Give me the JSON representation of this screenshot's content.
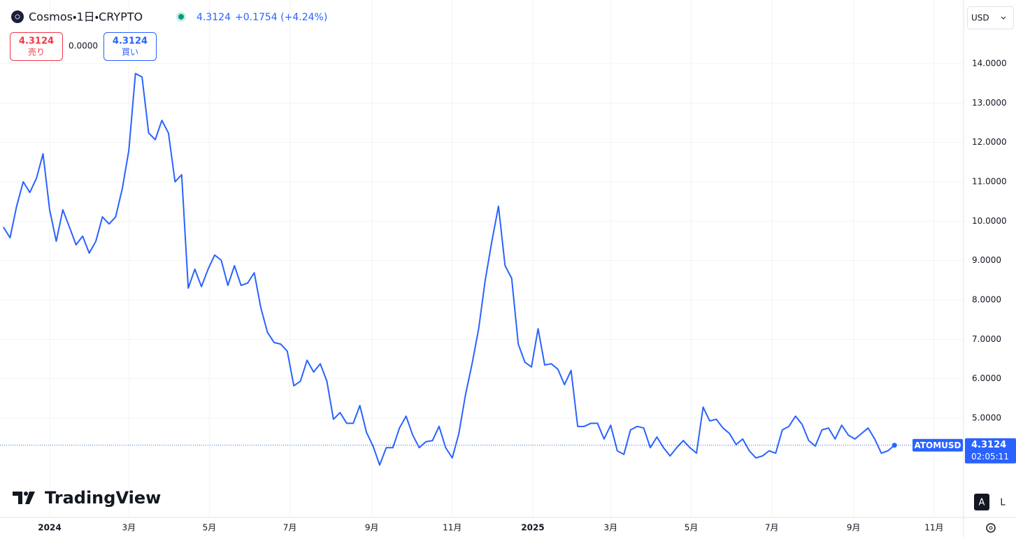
{
  "header": {
    "title": "Cosmos・1日・CRYPTO",
    "price": "4.3124",
    "change": "+0.1754 (+4.24%)"
  },
  "trade": {
    "sell_price": "4.3124",
    "sell_label": "売り",
    "spread": "0.0000",
    "buy_price": "4.3124",
    "buy_label": "買い"
  },
  "currency": "USD",
  "watermark": "TradingView",
  "scale_buttons": [
    "A",
    "L"
  ],
  "chart_data": {
    "type": "line",
    "series": [
      {
        "name": "ATOMUSD",
        "color": "#2962ff",
        "x": [
          -35,
          -30,
          -25,
          -20,
          -15,
          -10,
          -5,
          0,
          5,
          10,
          15,
          20,
          25,
          30,
          35,
          40,
          45,
          50,
          55,
          60,
          65,
          70,
          75,
          80,
          85,
          90,
          95,
          100,
          105,
          110,
          115,
          120,
          125,
          130,
          135,
          140,
          145,
          150,
          155,
          160,
          165,
          170,
          175,
          180,
          185,
          190,
          195,
          200,
          205,
          210,
          215,
          220,
          225,
          230,
          235,
          240,
          245,
          250,
          255,
          260,
          265,
          270,
          275,
          280,
          285,
          290,
          295,
          300,
          305,
          310,
          315,
          320,
          325,
          330,
          335,
          340,
          345,
          350,
          355,
          360,
          365,
          370,
          375,
          380,
          385,
          390,
          395,
          400,
          405,
          410,
          415,
          420,
          425,
          430,
          435,
          440,
          445,
          450,
          455,
          460,
          465,
          470,
          475,
          480,
          485,
          490,
          495,
          500,
          505,
          510,
          515,
          520,
          525,
          530,
          535,
          540,
          545,
          550,
          555,
          560,
          565,
          570,
          575,
          580,
          585,
          590,
          595,
          600,
          605,
          610,
          615,
          620,
          625,
          630,
          635,
          640
        ],
        "values": [
          9.85,
          9.58,
          10.38,
          11.0,
          10.73,
          11.09,
          11.71,
          10.29,
          9.49,
          10.29,
          9.85,
          9.4,
          9.62,
          9.19,
          9.49,
          10.11,
          9.93,
          10.11,
          10.82,
          11.8,
          13.75,
          13.66,
          12.24,
          12.07,
          12.56,
          12.24,
          11.0,
          11.18,
          8.3,
          8.78,
          8.34,
          8.78,
          9.14,
          9.01,
          8.37,
          8.87,
          8.37,
          8.43,
          8.69,
          7.8,
          7.18,
          6.92,
          6.88,
          6.7,
          5.82,
          5.94,
          6.47,
          6.17,
          6.38,
          5.94,
          4.97,
          5.14,
          4.87,
          4.87,
          5.32,
          4.64,
          4.29,
          3.81,
          4.25,
          4.25,
          4.75,
          5.05,
          4.57,
          4.25,
          4.4,
          4.43,
          4.79,
          4.25,
          3.99,
          4.61,
          5.59,
          6.38,
          7.27,
          8.51,
          9.49,
          10.38,
          8.87,
          8.55,
          6.88,
          6.42,
          6.3,
          7.27,
          6.35,
          6.38,
          6.24,
          5.85,
          6.21,
          4.79,
          4.79,
          4.87,
          4.87,
          4.47,
          4.82,
          4.17,
          4.08,
          4.7,
          4.79,
          4.75,
          4.25,
          4.52,
          4.25,
          4.04,
          4.25,
          4.43,
          4.25,
          4.11,
          5.28,
          4.93,
          4.97,
          4.75,
          4.61,
          4.33,
          4.47,
          4.17,
          3.99,
          4.04,
          4.17,
          4.11,
          4.7,
          4.79,
          5.05,
          4.84,
          4.43,
          4.29,
          4.7,
          4.75,
          4.47,
          4.82,
          4.57,
          4.47,
          4.61,
          4.75,
          4.47,
          4.11,
          4.17,
          4.3124
        ]
      }
    ],
    "xlim": [
      -37.6,
      692.3
    ],
    "xticks": [
      {
        "value": 0,
        "label": "2024"
      },
      {
        "value": 60,
        "label": "3月"
      },
      {
        "value": 121,
        "label": "5月"
      },
      {
        "value": 182,
        "label": "7月"
      },
      {
        "value": 244,
        "label": "9月"
      },
      {
        "value": 305,
        "label": "11月"
      },
      {
        "value": 366,
        "label": "2025"
      },
      {
        "value": 425,
        "label": "3月"
      },
      {
        "value": 486,
        "label": "5月"
      },
      {
        "value": 547,
        "label": "7月"
      },
      {
        "value": 609,
        "label": "9月"
      },
      {
        "value": 670,
        "label": "11月"
      }
    ],
    "ylim": [
      2.479,
      15.616
    ],
    "yticks": [
      {
        "value": 5,
        "label": "5.0000"
      },
      {
        "value": 6,
        "label": "6.0000"
      },
      {
        "value": 7,
        "label": "7.0000"
      },
      {
        "value": 8,
        "label": "8.0000"
      },
      {
        "value": 9,
        "label": "9.0000"
      },
      {
        "value": 10,
        "label": "10.0000"
      },
      {
        "value": 11,
        "label": "11.0000"
      },
      {
        "value": 12,
        "label": "12.0000"
      },
      {
        "value": 13,
        "label": "13.0000"
      },
      {
        "value": 14,
        "label": "14.0000"
      }
    ],
    "grid": true,
    "price_label": {
      "name": "ATOMUSD",
      "value": 4.3124,
      "countdown": "02:05:11",
      "color": "#2962ff"
    }
  }
}
